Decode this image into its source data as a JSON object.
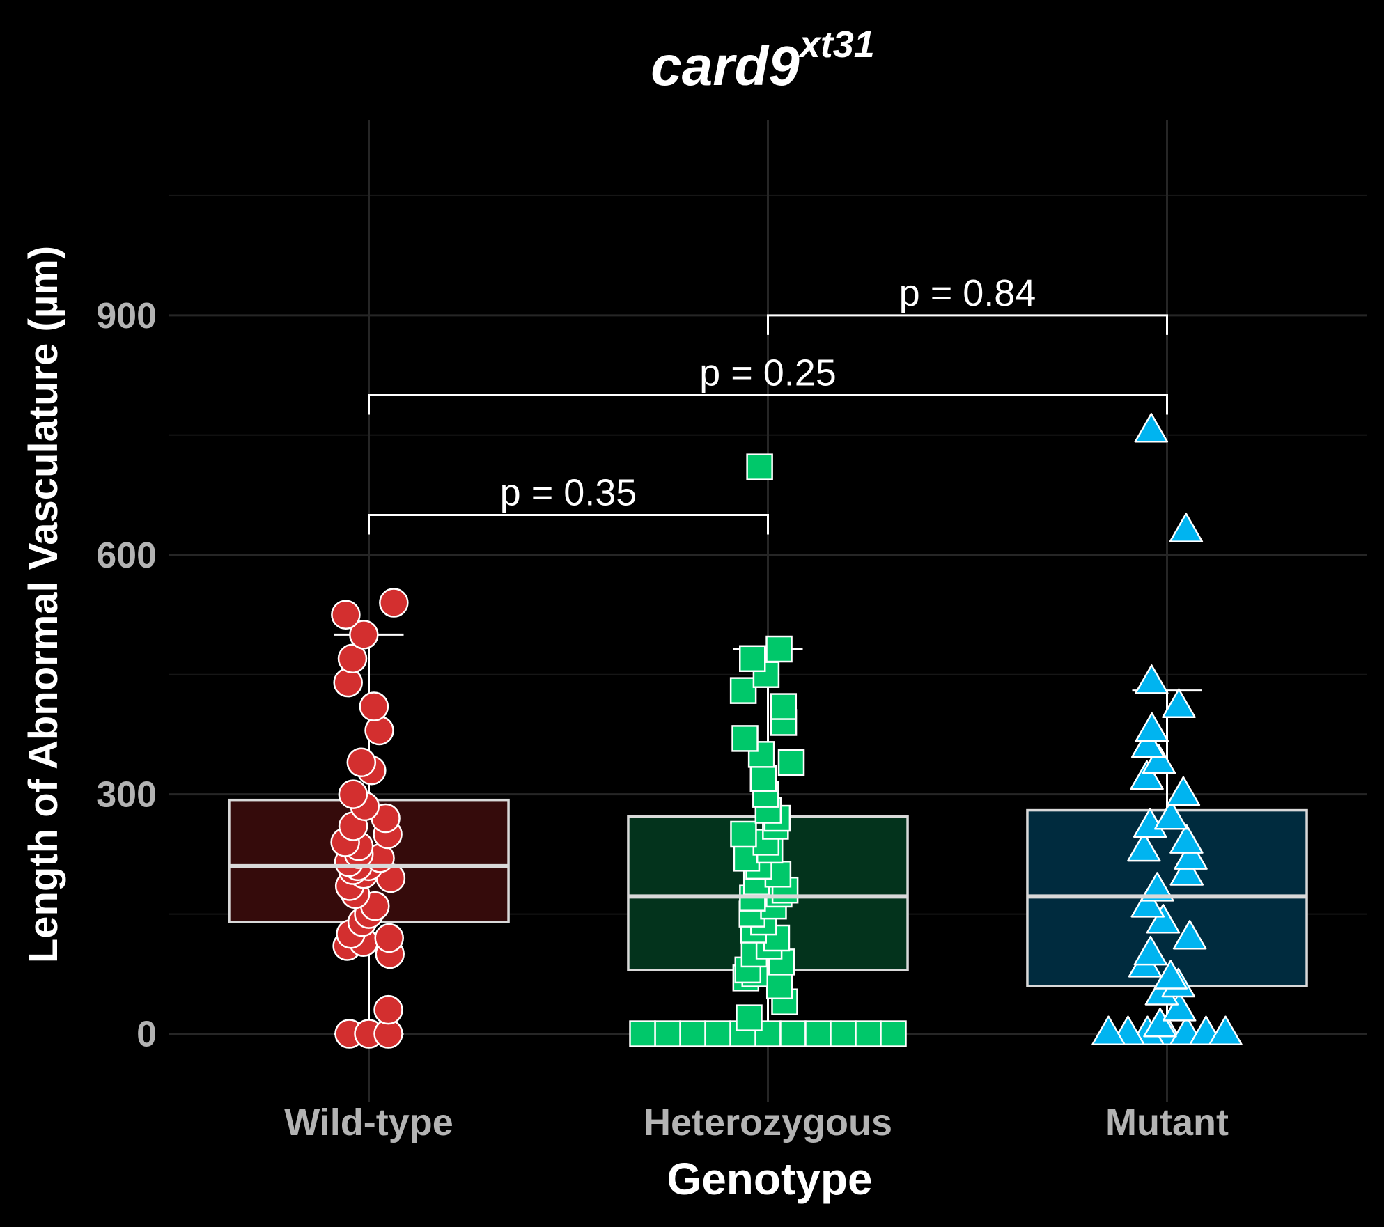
{
  "chart_data": {
    "type": "box",
    "title": {
      "main": "card9",
      "superscript": "xt31"
    },
    "xlabel": "Genotype",
    "ylabel": "Length of Abnormal Vasculature (µm)",
    "ylim": [
      -85,
      1145
    ],
    "yticks": [
      0,
      300,
      600,
      900
    ],
    "grid": true,
    "categories": [
      "Wild-type",
      "Heterozygous",
      "Mutant"
    ],
    "groups": [
      {
        "name": "Wild-type",
        "marker": "circle",
        "color": "#d32f2f",
        "box_fill": "#350b0b",
        "box": {
          "q1": 140,
          "median": 210,
          "q3": 293,
          "whisker_low": 0,
          "whisker_high": 500
        },
        "points": [
          0,
          0,
          0,
          30,
          100,
          110,
          115,
          120,
          125,
          140,
          150,
          160,
          175,
          185,
          195,
          200,
          205,
          210,
          210,
          215,
          220,
          225,
          235,
          240,
          250,
          260,
          270,
          285,
          300,
          330,
          340,
          380,
          410,
          440,
          470,
          500,
          525,
          540
        ]
      },
      {
        "name": "Heterozygous",
        "marker": "square",
        "color": "#00c86a",
        "box_fill": "#03331c",
        "box": {
          "q1": 80,
          "median": 172,
          "q3": 272,
          "whisker_low": 0,
          "whisker_high": 482
        },
        "points": [
          0,
          0,
          0,
          0,
          0,
          0,
          0,
          0,
          0,
          0,
          0,
          20,
          40,
          60,
          70,
          75,
          80,
          90,
          100,
          110,
          120,
          130,
          140,
          150,
          160,
          170,
          175,
          180,
          190,
          200,
          210,
          220,
          230,
          240,
          250,
          260,
          270,
          280,
          300,
          320,
          340,
          350,
          370,
          390,
          410,
          430,
          450,
          470,
          482,
          710
        ]
      },
      {
        "name": "Mutant",
        "marker": "triangle",
        "color": "#00b4f0",
        "box_fill": "#002b3e",
        "box": {
          "q1": 60,
          "median": 172,
          "q3": 280,
          "whisker_low": 0,
          "whisker_high": 430
        },
        "points": [
          0,
          0,
          0,
          0,
          0,
          0,
          0,
          10,
          30,
          50,
          60,
          70,
          85,
          100,
          120,
          140,
          160,
          180,
          200,
          220,
          230,
          240,
          260,
          270,
          300,
          320,
          340,
          360,
          380,
          410,
          440,
          630,
          755
        ]
      }
    ],
    "comparisons": [
      {
        "group1": "Wild-type",
        "group2": "Heterozygous",
        "label": "p = 0.35",
        "y": 650
      },
      {
        "group1": "Wild-type",
        "group2": "Mutant",
        "label": "p = 0.25",
        "y": 800
      },
      {
        "group1": "Heterozygous",
        "group2": "Mutant",
        "label": "p = 0.84",
        "y": 900
      }
    ]
  }
}
